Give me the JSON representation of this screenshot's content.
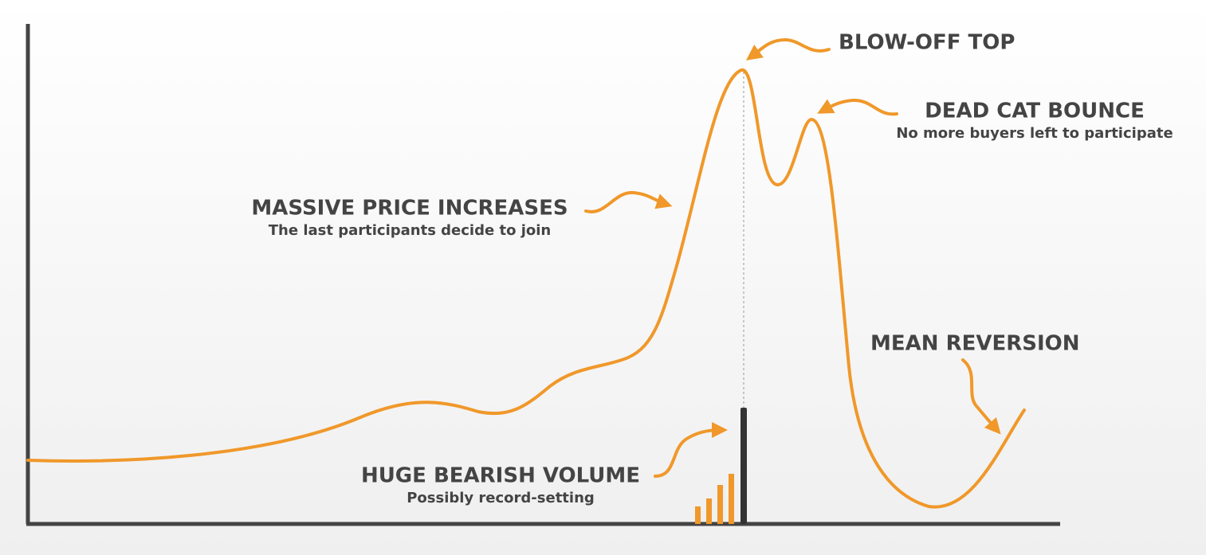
{
  "annotations": [
    {
      "title": "BLOW-OFF TOP"
    },
    {
      "title": "DEAD CAT BOUNCE",
      "subtitle": "No more buyers left to participate"
    },
    {
      "title": "MASSIVE PRICE INCREASES",
      "subtitle": "The last participants decide to join"
    },
    {
      "title": "MEAN REVERSION"
    },
    {
      "title": "HUGE BEARISH VOLUME",
      "subtitle": "Possibly record-setting"
    }
  ]
}
